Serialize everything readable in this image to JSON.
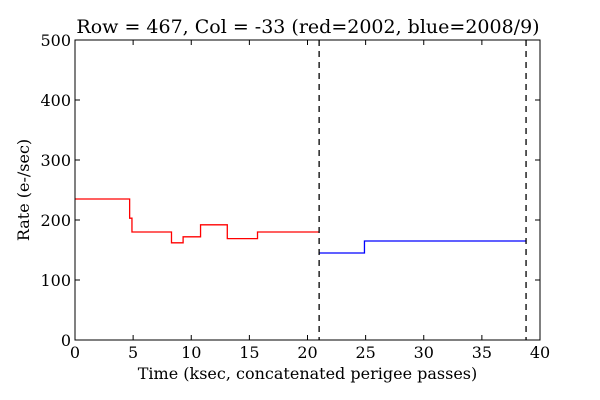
{
  "chart_data": {
    "type": "line",
    "title": "Row = 467, Col = -33 (red=2002, blue=2008/9)",
    "xlabel": "Time (ksec, concatenated perigee passes)",
    "ylabel": "Rate (e-/sec)",
    "xlim": [
      0,
      40
    ],
    "ylim": [
      0,
      500
    ],
    "xticks": [
      0,
      5,
      10,
      15,
      20,
      25,
      30,
      35,
      40
    ],
    "yticks": [
      0,
      100,
      200,
      300,
      400,
      500
    ],
    "grid": false,
    "vertical_lines": [
      {
        "x": 21.0,
        "style": "dashed",
        "color": "#000000"
      },
      {
        "x": 38.8,
        "style": "dashed",
        "color": "#000000"
      }
    ],
    "series": [
      {
        "color": "#ff0000",
        "drawstyle": "steps",
        "points": [
          [
            0,
            235
          ],
          [
            4.7,
            235
          ],
          [
            4.7,
            203
          ],
          [
            4.9,
            203
          ],
          [
            4.9,
            180
          ],
          [
            8.3,
            180
          ],
          [
            8.3,
            162
          ],
          [
            9.3,
            162
          ],
          [
            9.3,
            172
          ],
          [
            10.8,
            172
          ],
          [
            10.8,
            192
          ],
          [
            13.1,
            192
          ],
          [
            13.1,
            169
          ],
          [
            15.7,
            169
          ],
          [
            15.7,
            180
          ],
          [
            21.0,
            180
          ]
        ]
      },
      {
        "color": "#0000ff",
        "drawstyle": "steps",
        "points": [
          [
            21.0,
            145
          ],
          [
            24.9,
            145
          ],
          [
            24.9,
            165
          ],
          [
            38.8,
            165
          ]
        ]
      }
    ]
  }
}
